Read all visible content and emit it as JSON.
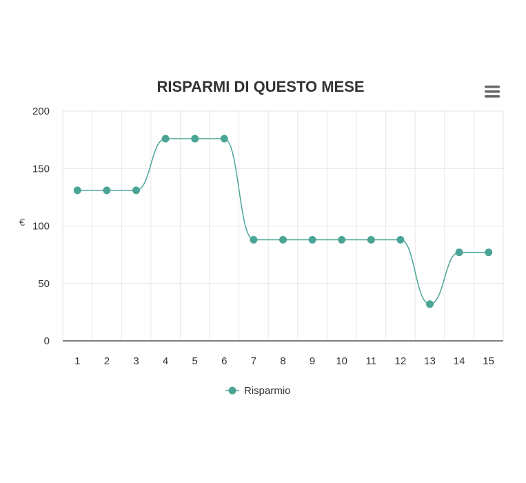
{
  "chart_data": {
    "type": "line",
    "title": "RISPARMI DI QUESTO MESE",
    "xlabel": "",
    "ylabel": "€",
    "categories": [
      "1",
      "2",
      "3",
      "4",
      "5",
      "6",
      "7",
      "8",
      "9",
      "10",
      "11",
      "12",
      "13",
      "14",
      "15"
    ],
    "series": [
      {
        "name": "Risparmio",
        "values": [
          131,
          131,
          131,
          176,
          176,
          176,
          88,
          88,
          88,
          88,
          88,
          88,
          32,
          77,
          77
        ],
        "color": "#4aa596"
      }
    ],
    "ylim": [
      0,
      200
    ],
    "yticks": [
      "0",
      "50",
      "100",
      "150",
      "200"
    ],
    "grid": true,
    "legend_position": "bottom-center"
  },
  "toolbar": {
    "menu_icon": "hamburger-menu-icon"
  }
}
